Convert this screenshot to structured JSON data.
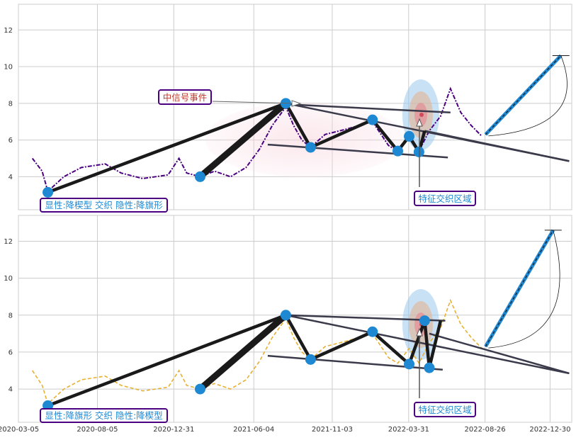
{
  "chart_data": {
    "type": "line",
    "x_tick_labels": [
      "2020-03-05",
      "2020-08-05",
      "2020-12-31",
      "2021-06-04",
      "2021-11-03",
      "2022-03-31",
      "2022-08-26",
      "2022-12-30"
    ],
    "y_tick_labels": [
      "4",
      "6",
      "8",
      "10",
      "12"
    ],
    "x_range": [
      "2020-03-05",
      "2023-02-10"
    ],
    "ylim": [
      2.2,
      13.4
    ],
    "grid": true,
    "panels": [
      {
        "name": "top",
        "price_color": "#4b0082",
        "price_style": "dash-dot",
        "price": [
          {
            "x": "2020-04-01",
            "y": 5.0
          },
          {
            "x": "2020-04-20",
            "y": 4.3
          },
          {
            "x": "2020-05-01",
            "y": 3.2
          },
          {
            "x": "2020-06-01",
            "y": 4.0
          },
          {
            "x": "2020-07-05",
            "y": 4.5
          },
          {
            "x": "2020-08-20",
            "y": 4.7
          },
          {
            "x": "2020-09-20",
            "y": 4.2
          },
          {
            "x": "2020-11-01",
            "y": 3.9
          },
          {
            "x": "2020-12-20",
            "y": 4.1
          },
          {
            "x": "2021-01-10",
            "y": 5.0
          },
          {
            "x": "2021-01-25",
            "y": 4.2
          },
          {
            "x": "2021-02-20",
            "y": 4.0
          },
          {
            "x": "2021-03-20",
            "y": 4.3
          },
          {
            "x": "2021-04-20",
            "y": 4.0
          },
          {
            "x": "2021-05-20",
            "y": 4.5
          },
          {
            "x": "2021-06-15",
            "y": 5.5
          },
          {
            "x": "2021-07-10",
            "y": 6.8
          },
          {
            "x": "2021-08-05",
            "y": 7.8
          },
          {
            "x": "2021-08-20",
            "y": 6.8
          },
          {
            "x": "2021-09-05",
            "y": 6.0
          },
          {
            "x": "2021-09-22",
            "y": 5.6
          },
          {
            "x": "2021-10-20",
            "y": 6.3
          },
          {
            "x": "2021-12-01",
            "y": 6.6
          },
          {
            "x": "2022-01-20",
            "y": 7.0
          },
          {
            "x": "2022-02-20",
            "y": 5.7
          },
          {
            "x": "2022-03-10",
            "y": 5.4
          },
          {
            "x": "2022-04-01",
            "y": 6.2
          },
          {
            "x": "2022-04-20",
            "y": 5.4
          },
          {
            "x": "2022-05-10",
            "y": 6.5
          },
          {
            "x": "2022-06-01",
            "y": 7.3
          },
          {
            "x": "2022-06-20",
            "y": 8.8
          },
          {
            "x": "2022-07-10",
            "y": 7.5
          },
          {
            "x": "2022-07-30",
            "y": 6.8
          },
          {
            "x": "2022-08-20",
            "y": 6.2
          }
        ],
        "projection": {
          "from": {
            "x": "2022-08-27",
            "y": 6.3
          },
          "to": {
            "x": "2023-01-20",
            "y": 10.6
          }
        },
        "pivots": [
          {
            "x": "2020-05-01",
            "y": 3.15
          },
          {
            "x": "2021-02-20",
            "y": 4.0
          },
          {
            "x": "2021-08-05",
            "y": 8.0
          },
          {
            "x": "2021-09-22",
            "y": 5.6
          },
          {
            "x": "2022-01-20",
            "y": 7.1
          },
          {
            "x": "2022-03-10",
            "y": 5.4
          },
          {
            "x": "2022-04-01",
            "y": 6.2
          },
          {
            "x": "2022-04-20",
            "y": 5.35
          }
        ],
        "zigzag": [
          {
            "x": "2020-05-01",
            "y": 3.15
          },
          {
            "x": "2021-08-05",
            "y": 8.0
          },
          {
            "x": "2021-09-22",
            "y": 5.6
          },
          {
            "x": "2022-01-20",
            "y": 7.1
          },
          {
            "x": "2022-03-10",
            "y": 5.4
          },
          {
            "x": "2022-04-01",
            "y": 6.2
          },
          {
            "x": "2022-04-20",
            "y": 5.35
          },
          {
            "x": "2022-05-01",
            "y": 6.5
          }
        ],
        "thick_segment": [
          {
            "x": "2021-02-20",
            "y": 4.0
          },
          {
            "x": "2021-08-05",
            "y": 8.0
          }
        ],
        "trend_lines": [
          [
            {
              "x": "2021-08-05",
              "y": 8.0
            },
            {
              "x": "2023-02-05",
              "y": 4.85
            }
          ],
          [
            {
              "x": "2021-08-05",
              "y": 7.95
            },
            {
              "x": "2022-06-20",
              "y": 7.5
            }
          ],
          [
            {
              "x": "2021-07-01",
              "y": 5.75
            },
            {
              "x": "2022-06-15",
              "y": 5.05
            }
          ],
          [
            {
              "x": "2022-05-01",
              "y": 6.5
            },
            {
              "x": "2023-02-05",
              "y": 4.85
            }
          ]
        ],
        "labels": {
          "pattern": "显性:降楔型 交织 隐性:降旗形",
          "signal": "中信号事件",
          "zone": "特征交织区域"
        }
      },
      {
        "name": "bottom",
        "price_color": "#e8b030",
        "price_style": "dashed",
        "price": [
          {
            "x": "2020-04-01",
            "y": 5.0
          },
          {
            "x": "2020-04-20",
            "y": 4.2
          },
          {
            "x": "2020-05-01",
            "y": 3.2
          },
          {
            "x": "2020-06-01",
            "y": 4.0
          },
          {
            "x": "2020-07-05",
            "y": 4.5
          },
          {
            "x": "2020-08-20",
            "y": 4.7
          },
          {
            "x": "2020-09-20",
            "y": 4.2
          },
          {
            "x": "2020-11-01",
            "y": 3.9
          },
          {
            "x": "2020-12-20",
            "y": 4.1
          },
          {
            "x": "2021-01-10",
            "y": 5.0
          },
          {
            "x": "2021-01-25",
            "y": 4.2
          },
          {
            "x": "2021-02-20",
            "y": 4.0
          },
          {
            "x": "2021-03-20",
            "y": 4.3
          },
          {
            "x": "2021-04-20",
            "y": 4.0
          },
          {
            "x": "2021-05-20",
            "y": 4.5
          },
          {
            "x": "2021-06-15",
            "y": 5.5
          },
          {
            "x": "2021-07-10",
            "y": 6.8
          },
          {
            "x": "2021-08-05",
            "y": 7.8
          },
          {
            "x": "2021-08-20",
            "y": 6.8
          },
          {
            "x": "2021-09-05",
            "y": 6.0
          },
          {
            "x": "2021-09-22",
            "y": 5.6
          },
          {
            "x": "2021-10-20",
            "y": 6.3
          },
          {
            "x": "2021-12-01",
            "y": 6.6
          },
          {
            "x": "2022-01-20",
            "y": 7.0
          },
          {
            "x": "2022-02-20",
            "y": 5.7
          },
          {
            "x": "2022-03-10",
            "y": 5.4
          },
          {
            "x": "2022-04-01",
            "y": 6.2
          },
          {
            "x": "2022-04-20",
            "y": 5.4
          },
          {
            "x": "2022-05-10",
            "y": 6.5
          },
          {
            "x": "2022-06-01",
            "y": 7.3
          },
          {
            "x": "2022-06-20",
            "y": 8.8
          },
          {
            "x": "2022-07-10",
            "y": 7.5
          },
          {
            "x": "2022-07-30",
            "y": 6.8
          },
          {
            "x": "2022-08-20",
            "y": 6.2
          }
        ],
        "projection": {
          "from": {
            "x": "2022-08-27",
            "y": 6.3
          },
          "to": {
            "x": "2023-01-05",
            "y": 12.6
          }
        },
        "pivots": [
          {
            "x": "2020-05-01",
            "y": 3.1
          },
          {
            "x": "2021-02-20",
            "y": 4.0
          },
          {
            "x": "2021-08-05",
            "y": 8.0
          },
          {
            "x": "2021-09-22",
            "y": 5.6
          },
          {
            "x": "2022-01-20",
            "y": 7.1
          },
          {
            "x": "2022-04-01",
            "y": 5.35
          },
          {
            "x": "2022-05-01",
            "y": 7.7
          },
          {
            "x": "2022-05-10",
            "y": 5.15
          }
        ],
        "zigzag": [
          {
            "x": "2020-05-01",
            "y": 3.1
          },
          {
            "x": "2021-08-05",
            "y": 8.0
          },
          {
            "x": "2021-09-22",
            "y": 5.6
          },
          {
            "x": "2022-01-20",
            "y": 7.1
          },
          {
            "x": "2022-04-01",
            "y": 5.35
          },
          {
            "x": "2022-05-01",
            "y": 7.7
          },
          {
            "x": "2022-05-10",
            "y": 5.15
          },
          {
            "x": "2022-06-01",
            "y": 7.7
          }
        ],
        "thick_segment": [
          {
            "x": "2021-02-20",
            "y": 4.0
          },
          {
            "x": "2021-08-05",
            "y": 8.0
          }
        ],
        "trend_lines": [
          [
            {
              "x": "2021-08-05",
              "y": 8.0
            },
            {
              "x": "2022-06-10",
              "y": 7.7
            }
          ],
          [
            {
              "x": "2021-07-01",
              "y": 5.8
            },
            {
              "x": "2022-06-05",
              "y": 5.05
            }
          ],
          [
            {
              "x": "2021-08-05",
              "y": 8.0
            },
            {
              "x": "2023-02-05",
              "y": 4.85
            }
          ],
          [
            {
              "x": "2022-05-10",
              "y": 7.0
            },
            {
              "x": "2023-02-05",
              "y": 4.85
            }
          ]
        ],
        "labels": {
          "pattern": "显性:降旗形 交织 隐性:降楔型",
          "zone": "特征交织区域"
        }
      }
    ]
  },
  "colors": {
    "grid": "#cccccc",
    "zigzag": "#1a1a1a",
    "trend": "#3a3a4a",
    "pivot": "#1f88d2",
    "label_border": "#4b0082",
    "label_text": "#1f88d2",
    "signal_text": "#c0392b"
  }
}
